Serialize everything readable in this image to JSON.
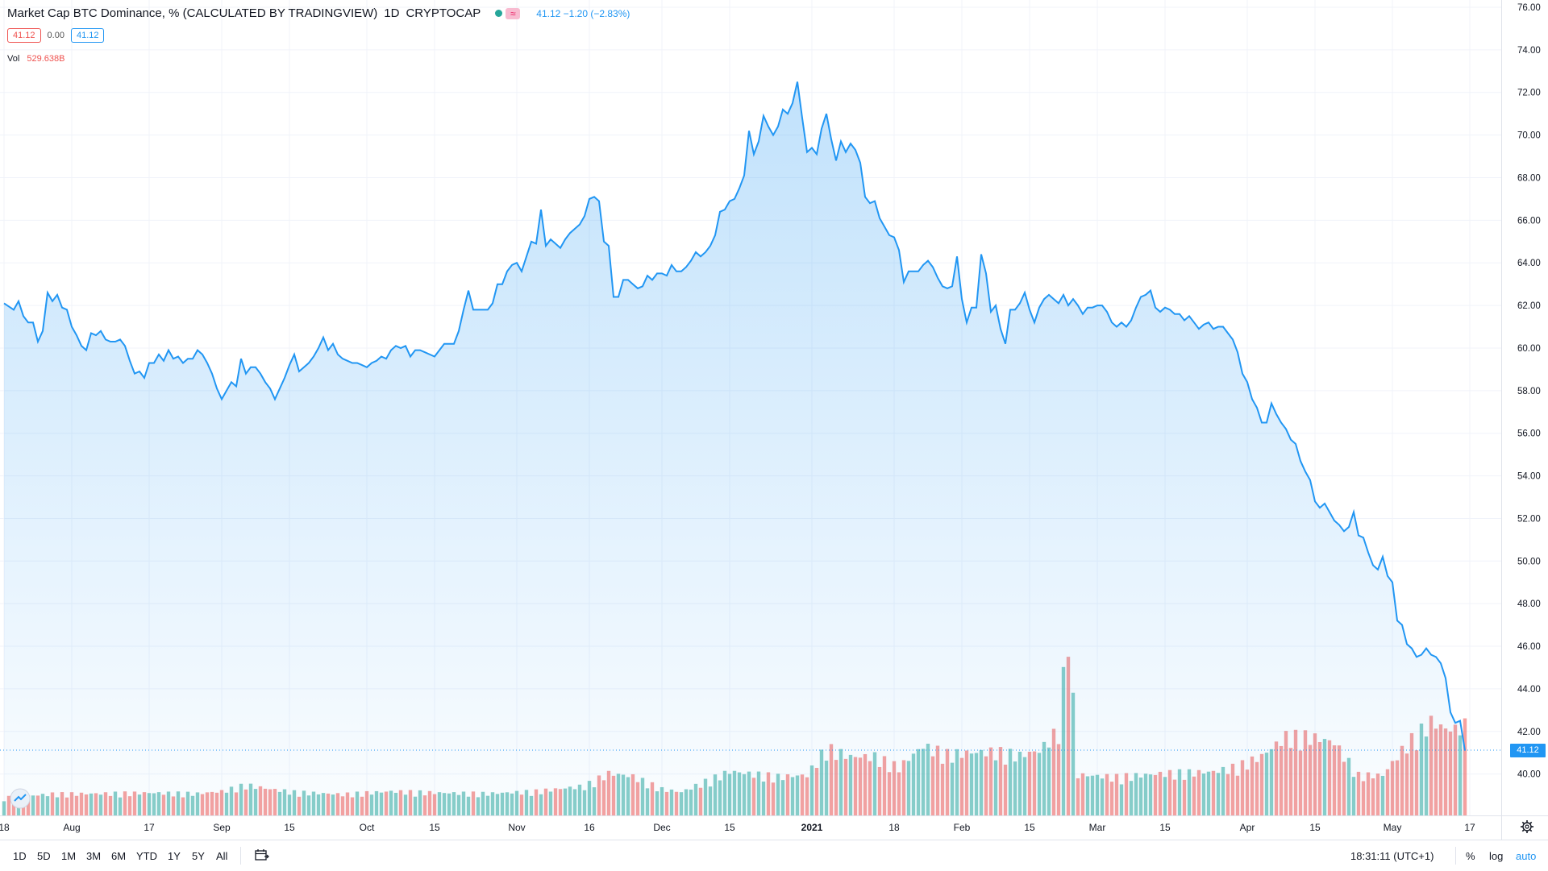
{
  "header": {
    "title": "Market Cap BTC Dominance, % (CALCULATED BY TRADINGVIEW)",
    "interval": "1D",
    "exchange": "CRYPTOCAP",
    "quote": "41.12  −1.20 (−2.83%)"
  },
  "ohlc": {
    "bid": "41.12",
    "spread": "0.00",
    "ask": "41.12"
  },
  "volume": {
    "label": "Vol",
    "value": "529.638B"
  },
  "last_price_label": "41.12",
  "bottom_bar": {
    "timeframes": [
      "1D",
      "5D",
      "1M",
      "3M",
      "6M",
      "YTD",
      "1Y",
      "5Y",
      "All"
    ],
    "clock": "18:31:11 (UTC+1)",
    "percent": "%",
    "log": "log",
    "auto": "auto"
  },
  "colors": {
    "line": "#2196f3",
    "up": "#26a69a",
    "down": "#ef5350",
    "fill": "#2196f3"
  },
  "chart_data": {
    "type": "area",
    "title": "Market Cap BTC Dominance, % (CALCULATED BY TRADINGVIEW)",
    "y_ticks": [
      40,
      42,
      44,
      46,
      48,
      50,
      52,
      54,
      56,
      58,
      60,
      62,
      64,
      66,
      68,
      70,
      72,
      74,
      76
    ],
    "y_tick_labels": [
      "40.00",
      "42.00",
      "44.00",
      "46.00",
      "48.00",
      "50.00",
      "52.00",
      "54.00",
      "56.00",
      "58.00",
      "60.00",
      "62.00",
      "64.00",
      "66.00",
      "68.00",
      "70.00",
      "72.00",
      "74.00",
      "76.00"
    ],
    "x_ticks": [
      {
        "day": 0,
        "label": "18"
      },
      {
        "day": 14,
        "label": "Aug"
      },
      {
        "day": 30,
        "label": "17"
      },
      {
        "day": 45,
        "label": "Sep"
      },
      {
        "day": 59,
        "label": "15"
      },
      {
        "day": 75,
        "label": "Oct"
      },
      {
        "day": 89,
        "label": "15"
      },
      {
        "day": 106,
        "label": "Nov"
      },
      {
        "day": 121,
        "label": "16"
      },
      {
        "day": 136,
        "label": "Dec"
      },
      {
        "day": 150,
        "label": "15"
      },
      {
        "day": 167,
        "label": "2021"
      },
      {
        "day": 184,
        "label": "18"
      },
      {
        "day": 198,
        "label": "Feb"
      },
      {
        "day": 212,
        "label": "15"
      },
      {
        "day": 226,
        "label": "Mar"
      },
      {
        "day": 240,
        "label": "15"
      },
      {
        "day": 257,
        "label": "Apr"
      },
      {
        "day": 271,
        "label": "15"
      },
      {
        "day": 287,
        "label": "May"
      },
      {
        "day": 303,
        "label": "17"
      }
    ],
    "x_range": [
      0,
      318
    ],
    "y_range": [
      37.9,
      76.5
    ],
    "last_value": 41.12,
    "price_keypoints": [
      [
        0,
        62.1
      ],
      [
        2,
        61.8
      ],
      [
        3,
        62.2
      ],
      [
        4,
        61.5
      ],
      [
        5,
        61.2
      ],
      [
        6,
        61.2
      ],
      [
        7,
        60.3
      ],
      [
        8,
        60.8
      ],
      [
        9,
        62.6
      ],
      [
        10,
        62.2
      ],
      [
        11,
        62.5
      ],
      [
        12,
        61.9
      ],
      [
        13,
        61.8
      ],
      [
        14,
        61.0
      ],
      [
        15,
        60.6
      ],
      [
        16,
        60.1
      ],
      [
        17,
        59.9
      ],
      [
        18,
        60.7
      ],
      [
        19,
        60.6
      ],
      [
        20,
        60.8
      ],
      [
        21,
        60.4
      ],
      [
        22,
        60.3
      ],
      [
        23,
        60.3
      ],
      [
        24,
        60.4
      ],
      [
        25,
        60.1
      ],
      [
        26,
        59.4
      ],
      [
        27,
        58.8
      ],
      [
        28,
        58.9
      ],
      [
        29,
        58.6
      ],
      [
        30,
        59.3
      ],
      [
        31,
        59.3
      ],
      [
        32,
        59.7
      ],
      [
        33,
        59.4
      ],
      [
        34,
        59.9
      ],
      [
        35,
        59.5
      ],
      [
        36,
        59.6
      ],
      [
        37,
        59.3
      ],
      [
        38,
        59.5
      ],
      [
        39,
        59.5
      ],
      [
        40,
        59.9
      ],
      [
        41,
        59.7
      ],
      [
        42,
        59.3
      ],
      [
        43,
        58.8
      ],
      [
        44,
        58.1
      ],
      [
        45,
        57.6
      ],
      [
        46,
        58.0
      ],
      [
        47,
        58.4
      ],
      [
        48,
        58.2
      ],
      [
        49,
        59.5
      ],
      [
        50,
        58.8
      ],
      [
        51,
        59.1
      ],
      [
        52,
        59.1
      ],
      [
        53,
        58.8
      ],
      [
        54,
        58.4
      ],
      [
        55,
        58.1
      ],
      [
        56,
        57.6
      ],
      [
        57,
        58.1
      ],
      [
        58,
        58.6
      ],
      [
        59,
        59.2
      ],
      [
        60,
        59.7
      ],
      [
        61,
        58.9
      ],
      [
        62,
        59.1
      ],
      [
        63,
        59.3
      ],
      [
        64,
        59.6
      ],
      [
        65,
        60.0
      ],
      [
        66,
        60.5
      ],
      [
        67,
        59.9
      ],
      [
        68,
        60.2
      ],
      [
        69,
        59.7
      ],
      [
        70,
        59.5
      ],
      [
        71,
        59.4
      ],
      [
        72,
        59.3
      ],
      [
        73,
        59.3
      ],
      [
        74,
        59.2
      ],
      [
        75,
        59.1
      ],
      [
        76,
        59.3
      ],
      [
        77,
        59.4
      ],
      [
        78,
        59.6
      ],
      [
        79,
        59.5
      ],
      [
        80,
        59.9
      ],
      [
        81,
        60.1
      ],
      [
        82,
        60.0
      ],
      [
        83,
        60.1
      ],
      [
        84,
        59.6
      ],
      [
        85,
        59.9
      ],
      [
        86,
        59.9
      ],
      [
        87,
        59.8
      ],
      [
        88,
        59.7
      ],
      [
        89,
        59.6
      ],
      [
        90,
        59.9
      ],
      [
        91,
        60.2
      ],
      [
        92,
        60.2
      ],
      [
        93,
        60.2
      ],
      [
        94,
        60.8
      ],
      [
        95,
        61.8
      ],
      [
        96,
        62.7
      ],
      [
        97,
        61.8
      ],
      [
        98,
        61.8
      ],
      [
        99,
        61.8
      ],
      [
        100,
        61.8
      ],
      [
        101,
        62.1
      ],
      [
        102,
        63.0
      ],
      [
        103,
        63.0
      ],
      [
        104,
        63.6
      ],
      [
        105,
        63.9
      ],
      [
        106,
        64.0
      ],
      [
        107,
        63.6
      ],
      [
        108,
        64.3
      ],
      [
        109,
        65.0
      ],
      [
        110,
        64.9
      ],
      [
        111,
        66.5
      ],
      [
        112,
        64.8
      ],
      [
        113,
        65.1
      ],
      [
        114,
        64.9
      ],
      [
        115,
        64.7
      ],
      [
        116,
        65.1
      ],
      [
        117,
        65.4
      ],
      [
        118,
        65.6
      ],
      [
        119,
        65.8
      ],
      [
        120,
        66.2
      ],
      [
        121,
        67.0
      ],
      [
        122,
        67.1
      ],
      [
        123,
        66.9
      ],
      [
        124,
        65.0
      ],
      [
        125,
        64.8
      ],
      [
        126,
        62.4
      ],
      [
        127,
        62.4
      ],
      [
        128,
        63.2
      ],
      [
        129,
        63.2
      ],
      [
        130,
        63.0
      ],
      [
        131,
        62.8
      ],
      [
        132,
        62.9
      ],
      [
        133,
        63.4
      ],
      [
        134,
        63.2
      ],
      [
        135,
        63.5
      ],
      [
        136,
        63.5
      ],
      [
        137,
        63.4
      ],
      [
        138,
        63.9
      ],
      [
        139,
        63.6
      ],
      [
        140,
        63.6
      ],
      [
        141,
        63.8
      ],
      [
        142,
        64.1
      ],
      [
        143,
        64.5
      ],
      [
        144,
        64.3
      ],
      [
        145,
        64.5
      ],
      [
        146,
        64.8
      ],
      [
        147,
        65.3
      ],
      [
        148,
        66.4
      ],
      [
        149,
        66.5
      ],
      [
        150,
        66.9
      ],
      [
        151,
        67.0
      ],
      [
        152,
        67.5
      ],
      [
        153,
        68.1
      ],
      [
        154,
        70.2
      ],
      [
        155,
        69.1
      ],
      [
        156,
        69.7
      ],
      [
        157,
        70.9
      ],
      [
        158,
        70.4
      ],
      [
        159,
        70.0
      ],
      [
        160,
        70.4
      ],
      [
        161,
        71.2
      ],
      [
        162,
        71.0
      ],
      [
        163,
        71.5
      ],
      [
        164,
        72.5
      ],
      [
        165,
        70.8
      ],
      [
        166,
        69.2
      ],
      [
        167,
        69.4
      ],
      [
        168,
        69.1
      ],
      [
        169,
        70.3
      ],
      [
        170,
        71.0
      ],
      [
        171,
        69.8
      ],
      [
        172,
        68.8
      ],
      [
        173,
        69.7
      ],
      [
        174,
        69.2
      ],
      [
        175,
        69.6
      ],
      [
        176,
        69.3
      ],
      [
        177,
        68.7
      ],
      [
        178,
        67.1
      ],
      [
        179,
        66.8
      ],
      [
        180,
        66.9
      ],
      [
        181,
        66.1
      ],
      [
        182,
        65.7
      ],
      [
        183,
        65.3
      ],
      [
        184,
        65.2
      ],
      [
        185,
        64.6
      ],
      [
        186,
        63.1
      ],
      [
        187,
        63.6
      ],
      [
        188,
        63.6
      ],
      [
        189,
        63.6
      ],
      [
        190,
        63.9
      ],
      [
        191,
        64.1
      ],
      [
        192,
        63.8
      ],
      [
        193,
        63.3
      ],
      [
        194,
        62.9
      ],
      [
        195,
        62.8
      ],
      [
        196,
        62.9
      ],
      [
        197,
        64.3
      ],
      [
        198,
        62.3
      ],
      [
        199,
        61.2
      ],
      [
        200,
        61.9
      ],
      [
        201,
        61.9
      ],
      [
        202,
        64.4
      ],
      [
        203,
        63.5
      ],
      [
        204,
        61.7
      ],
      [
        205,
        62.0
      ],
      [
        206,
        60.9
      ],
      [
        207,
        60.2
      ],
      [
        208,
        61.8
      ],
      [
        209,
        61.8
      ],
      [
        210,
        62.1
      ],
      [
        211,
        62.6
      ],
      [
        212,
        61.8
      ],
      [
        213,
        61.2
      ],
      [
        214,
        61.9
      ],
      [
        215,
        62.3
      ],
      [
        216,
        62.5
      ],
      [
        217,
        62.3
      ],
      [
        218,
        62.1
      ],
      [
        219,
        62.5
      ],
      [
        220,
        62.0
      ],
      [
        221,
        62.3
      ],
      [
        222,
        62.0
      ],
      [
        223,
        61.6
      ],
      [
        224,
        61.9
      ],
      [
        225,
        61.9
      ],
      [
        226,
        62.0
      ],
      [
        227,
        62.0
      ],
      [
        228,
        61.7
      ],
      [
        229,
        61.2
      ],
      [
        230,
        61.0
      ],
      [
        231,
        61.2
      ],
      [
        232,
        61.0
      ],
      [
        233,
        61.3
      ],
      [
        234,
        61.9
      ],
      [
        235,
        62.4
      ],
      [
        236,
        62.5
      ],
      [
        237,
        62.7
      ],
      [
        238,
        61.9
      ],
      [
        239,
        61.7
      ],
      [
        240,
        61.9
      ],
      [
        241,
        61.8
      ],
      [
        242,
        61.6
      ],
      [
        243,
        61.6
      ],
      [
        244,
        61.3
      ],
      [
        245,
        61.5
      ],
      [
        246,
        61.2
      ],
      [
        247,
        60.9
      ],
      [
        248,
        61.1
      ],
      [
        249,
        61.2
      ],
      [
        250,
        60.9
      ],
      [
        251,
        61.0
      ],
      [
        252,
        61.0
      ],
      [
        253,
        60.7
      ],
      [
        254,
        60.4
      ],
      [
        255,
        59.8
      ],
      [
        256,
        58.8
      ],
      [
        257,
        58.4
      ],
      [
        258,
        57.6
      ],
      [
        259,
        57.2
      ],
      [
        260,
        56.5
      ],
      [
        261,
        56.5
      ],
      [
        262,
        57.4
      ],
      [
        263,
        56.9
      ],
      [
        264,
        56.5
      ],
      [
        265,
        56.2
      ],
      [
        266,
        55.7
      ],
      [
        267,
        55.5
      ],
      [
        268,
        54.7
      ],
      [
        269,
        54.2
      ],
      [
        270,
        53.8
      ],
      [
        271,
        52.8
      ],
      [
        272,
        52.5
      ],
      [
        273,
        52.7
      ],
      [
        274,
        52.3
      ],
      [
        275,
        51.9
      ],
      [
        276,
        51.7
      ],
      [
        277,
        51.4
      ],
      [
        278,
        51.6
      ],
      [
        279,
        52.3
      ],
      [
        280,
        51.2
      ],
      [
        281,
        51.1
      ],
      [
        282,
        50.4
      ],
      [
        283,
        49.8
      ],
      [
        284,
        49.6
      ],
      [
        285,
        50.2
      ],
      [
        286,
        49.3
      ],
      [
        287,
        49.0
      ],
      [
        288,
        47.2
      ],
      [
        289,
        47.0
      ],
      [
        290,
        46.1
      ],
      [
        291,
        45.9
      ],
      [
        292,
        45.5
      ],
      [
        293,
        45.6
      ],
      [
        294,
        45.9
      ],
      [
        295,
        45.6
      ],
      [
        296,
        45.5
      ],
      [
        297,
        45.2
      ],
      [
        298,
        44.5
      ],
      [
        299,
        42.9
      ],
      [
        300,
        42.4
      ],
      [
        301,
        42.5
      ],
      [
        302,
        41.1
      ]
    ],
    "volume_keypoints": [
      [
        0,
        4.7
      ],
      [
        10,
        5.7
      ],
      [
        20,
        5.8
      ],
      [
        30,
        6.0
      ],
      [
        40,
        5.8
      ],
      [
        45,
        6.4
      ],
      [
        50,
        8.1
      ],
      [
        55,
        7.0
      ],
      [
        60,
        6.2
      ],
      [
        70,
        5.6
      ],
      [
        80,
        6.4
      ],
      [
        90,
        6.0
      ],
      [
        100,
        5.8
      ],
      [
        110,
        6.4
      ],
      [
        120,
        7.8
      ],
      [
        125,
        11.2
      ],
      [
        130,
        10.4
      ],
      [
        136,
        7.0
      ],
      [
        140,
        6.2
      ],
      [
        145,
        9.0
      ],
      [
        150,
        11.7
      ],
      [
        160,
        10.3
      ],
      [
        166,
        10.7
      ],
      [
        170,
        18.0
      ],
      [
        175,
        15.6
      ],
      [
        180,
        15.7
      ],
      [
        185,
        12.8
      ],
      [
        190,
        18.5
      ],
      [
        195,
        16.3
      ],
      [
        200,
        16.7
      ],
      [
        205,
        17.0
      ],
      [
        210,
        16.0
      ],
      [
        214,
        17.2
      ],
      [
        218,
        22.8
      ],
      [
        220,
        50.0
      ],
      [
        222,
        10.8
      ],
      [
        230,
        10.2
      ],
      [
        240,
        11.2
      ],
      [
        250,
        11.6
      ],
      [
        255,
        13.0
      ],
      [
        260,
        15.8
      ],
      [
        265,
        21.0
      ],
      [
        270,
        21.0
      ],
      [
        275,
        19.4
      ],
      [
        280,
        10.7
      ],
      [
        285,
        10.7
      ],
      [
        290,
        19.0
      ],
      [
        295,
        25.0
      ],
      [
        298,
        23.0
      ],
      [
        300,
        23.0
      ],
      [
        302,
        24.0
      ]
    ],
    "volume_unit": "B",
    "volume_last": 529.638
  }
}
